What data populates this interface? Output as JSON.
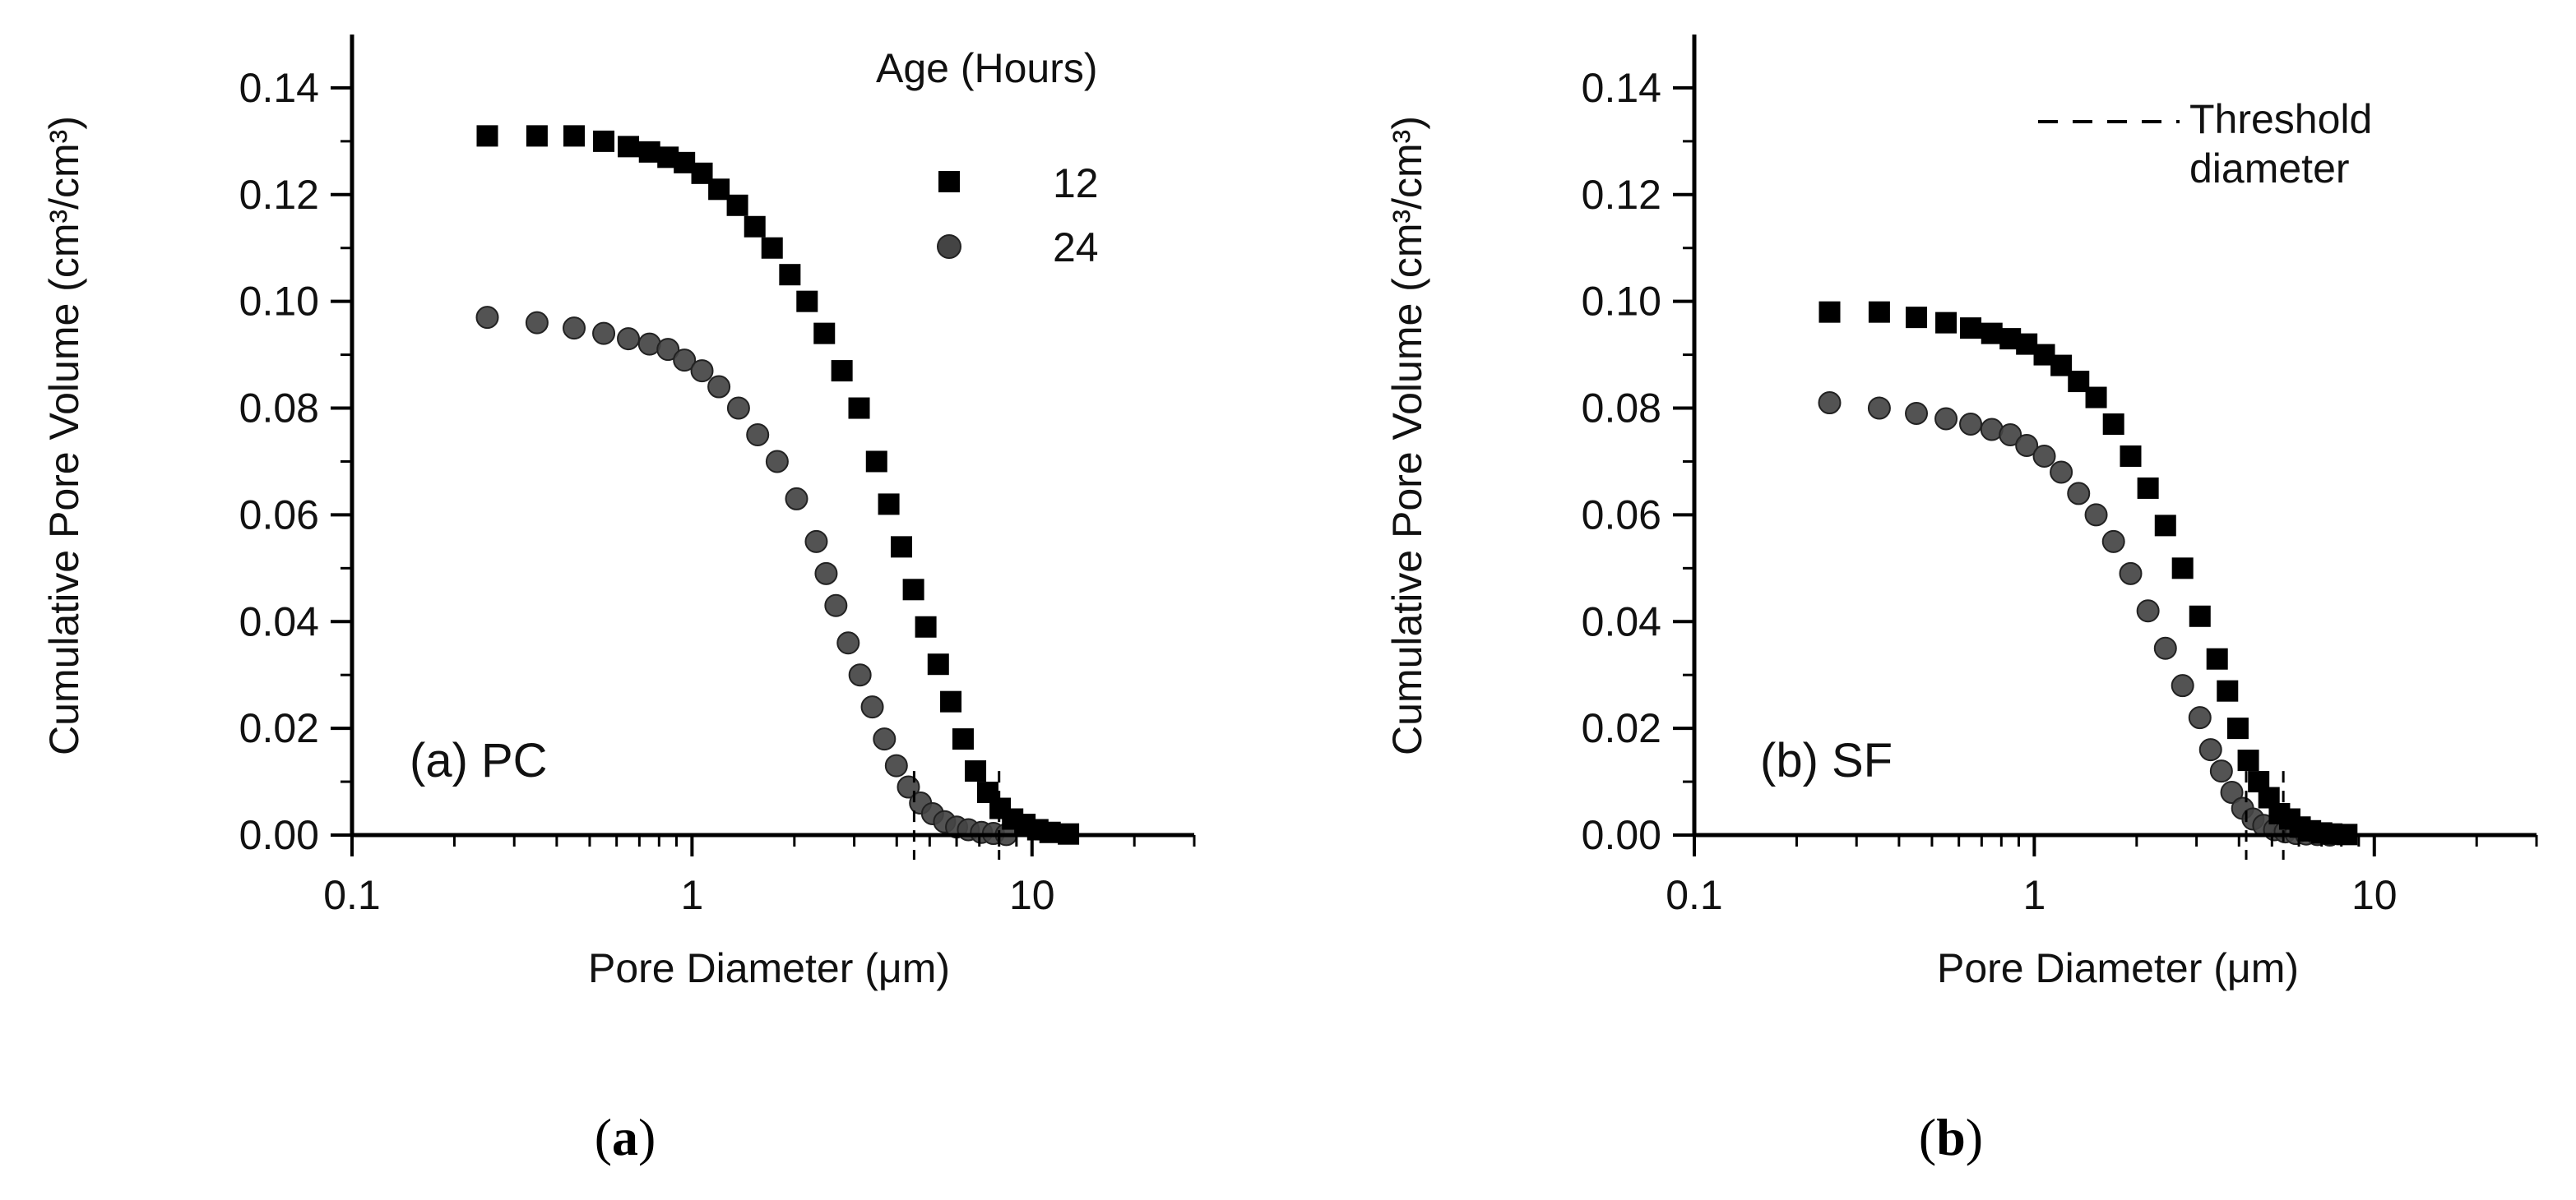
{
  "chart_data": [
    {
      "type": "scatter",
      "panel_label": "(a) PC",
      "caption": "(a)",
      "xlabel": "Pore Diameter (μm)",
      "ylabel": "Cumulative Pore Volume (cm³/cm³)",
      "x_scale": "log",
      "xlim": [
        0.1,
        30
      ],
      "ylim": [
        0,
        0.15
      ],
      "x_ticks": [
        "0.1",
        "1",
        "10"
      ],
      "y_ticks": [
        "0.00",
        "0.02",
        "0.04",
        "0.06",
        "0.08",
        "0.10",
        "0.12",
        "0.14"
      ],
      "legend": {
        "title": "Age (Hours)",
        "entries": [
          "12",
          "24"
        ],
        "placement": "top-right"
      },
      "threshold_diameters": [
        4.5,
        8.0
      ],
      "series": [
        {
          "name": "12",
          "marker": "square",
          "color": "#000000",
          "points": [
            [
              0.25,
              0.131
            ],
            [
              0.35,
              0.131
            ],
            [
              0.45,
              0.131
            ],
            [
              0.55,
              0.13
            ],
            [
              0.65,
              0.129
            ],
            [
              0.75,
              0.128
            ],
            [
              0.85,
              0.127
            ],
            [
              0.95,
              0.126
            ],
            [
              1.07,
              0.124
            ],
            [
              1.2,
              0.121
            ],
            [
              1.36,
              0.118
            ],
            [
              1.53,
              0.114
            ],
            [
              1.72,
              0.11
            ],
            [
              1.94,
              0.105
            ],
            [
              2.18,
              0.1
            ],
            [
              2.45,
              0.094
            ],
            [
              2.76,
              0.087
            ],
            [
              3.1,
              0.08
            ],
            [
              3.49,
              0.07
            ],
            [
              3.79,
              0.062
            ],
            [
              4.13,
              0.054
            ],
            [
              4.48,
              0.046
            ],
            [
              4.87,
              0.039
            ],
            [
              5.3,
              0.032
            ],
            [
              5.77,
              0.025
            ],
            [
              6.27,
              0.018
            ],
            [
              6.82,
              0.012
            ],
            [
              7.41,
              0.008
            ],
            [
              8.06,
              0.005
            ],
            [
              8.77,
              0.003
            ],
            [
              9.53,
              0.002
            ],
            [
              10.4,
              0.001
            ],
            [
              11.3,
              0.0005
            ],
            [
              12.8,
              0.0002
            ]
          ]
        },
        {
          "name": "24",
          "marker": "circle",
          "color": "#444444",
          "points": [
            [
              0.25,
              0.097
            ],
            [
              0.35,
              0.096
            ],
            [
              0.45,
              0.095
            ],
            [
              0.55,
              0.094
            ],
            [
              0.65,
              0.093
            ],
            [
              0.75,
              0.092
            ],
            [
              0.85,
              0.091
            ],
            [
              0.95,
              0.089
            ],
            [
              1.07,
              0.087
            ],
            [
              1.2,
              0.084
            ],
            [
              1.37,
              0.08
            ],
            [
              1.56,
              0.075
            ],
            [
              1.78,
              0.07
            ],
            [
              2.03,
              0.063
            ],
            [
              2.32,
              0.055
            ],
            [
              2.48,
              0.049
            ],
            [
              2.65,
              0.043
            ],
            [
              2.88,
              0.036
            ],
            [
              3.12,
              0.03
            ],
            [
              3.39,
              0.024
            ],
            [
              3.68,
              0.018
            ],
            [
              3.99,
              0.013
            ],
            [
              4.33,
              0.009
            ],
            [
              4.7,
              0.006
            ],
            [
              5.1,
              0.004
            ],
            [
              5.53,
              0.0025
            ],
            [
              6.0,
              0.0015
            ],
            [
              6.5,
              0.001
            ],
            [
              7.1,
              0.0005
            ],
            [
              7.7,
              0.0003
            ],
            [
              8.4,
              0.0001
            ]
          ]
        }
      ]
    },
    {
      "type": "scatter",
      "panel_label": "(b) SF",
      "caption": "(b)",
      "xlabel": "Pore Diameter (μm)",
      "ylabel": "Cumulative Pore Volume (cm³/cm³)",
      "x_scale": "log",
      "xlim": [
        0.1,
        30
      ],
      "ylim": [
        0,
        0.15
      ],
      "x_ticks": [
        "0.1",
        "1",
        "10"
      ],
      "y_ticks": [
        "0.00",
        "0.02",
        "0.04",
        "0.06",
        "0.08",
        "0.10",
        "0.12",
        "0.14"
      ],
      "legend": {
        "title": "",
        "entries": [
          "Threshold",
          "diameter"
        ],
        "placement": "top-right"
      },
      "threshold_diameters": [
        4.2,
        5.4
      ],
      "series": [
        {
          "name": "12",
          "marker": "square",
          "color": "#000000",
          "points": [
            [
              0.25,
              0.098
            ],
            [
              0.35,
              0.098
            ],
            [
              0.45,
              0.097
            ],
            [
              0.55,
              0.096
            ],
            [
              0.65,
              0.095
            ],
            [
              0.75,
              0.094
            ],
            [
              0.85,
              0.093
            ],
            [
              0.95,
              0.092
            ],
            [
              1.07,
              0.09
            ],
            [
              1.2,
              0.088
            ],
            [
              1.35,
              0.085
            ],
            [
              1.52,
              0.082
            ],
            [
              1.71,
              0.077
            ],
            [
              1.92,
              0.071
            ],
            [
              2.16,
              0.065
            ],
            [
              2.43,
              0.058
            ],
            [
              2.73,
              0.05
            ],
            [
              3.07,
              0.041
            ],
            [
              3.45,
              0.033
            ],
            [
              3.7,
              0.027
            ],
            [
              3.97,
              0.02
            ],
            [
              4.26,
              0.014
            ],
            [
              4.57,
              0.01
            ],
            [
              4.9,
              0.007
            ],
            [
              5.26,
              0.004
            ],
            [
              5.64,
              0.003
            ],
            [
              6.05,
              0.0015
            ],
            [
              6.49,
              0.0008
            ],
            [
              7.0,
              0.0004
            ],
            [
              7.5,
              0.0002
            ],
            [
              8.3,
              0.0001
            ]
          ]
        },
        {
          "name": "24",
          "marker": "circle",
          "color": "#444444",
          "points": [
            [
              0.25,
              0.081
            ],
            [
              0.35,
              0.08
            ],
            [
              0.45,
              0.079
            ],
            [
              0.55,
              0.078
            ],
            [
              0.65,
              0.077
            ],
            [
              0.75,
              0.076
            ],
            [
              0.85,
              0.075
            ],
            [
              0.95,
              0.073
            ],
            [
              1.07,
              0.071
            ],
            [
              1.2,
              0.068
            ],
            [
              1.35,
              0.064
            ],
            [
              1.52,
              0.06
            ],
            [
              1.71,
              0.055
            ],
            [
              1.92,
              0.049
            ],
            [
              2.16,
              0.042
            ],
            [
              2.43,
              0.035
            ],
            [
              2.73,
              0.028
            ],
            [
              3.07,
              0.022
            ],
            [
              3.3,
              0.016
            ],
            [
              3.55,
              0.012
            ],
            [
              3.81,
              0.008
            ],
            [
              4.1,
              0.005
            ],
            [
              4.4,
              0.003
            ],
            [
              4.73,
              0.0018
            ],
            [
              5.09,
              0.001
            ],
            [
              5.47,
              0.0006
            ],
            [
              5.88,
              0.0003
            ],
            [
              6.3,
              0.0002
            ],
            [
              6.8,
              0.0001
            ],
            [
              7.4,
              0.0
            ]
          ]
        }
      ]
    }
  ]
}
